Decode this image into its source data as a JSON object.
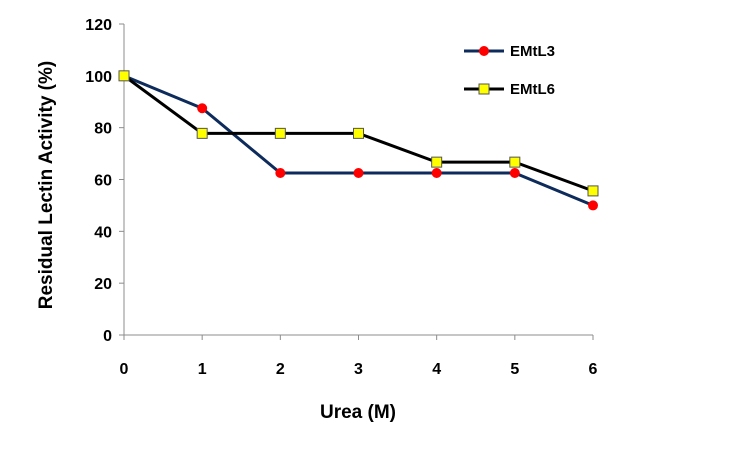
{
  "chart_data": {
    "type": "line",
    "xlabel": "Urea (M)",
    "ylabel": "Residual Lectin Activity (%)",
    "xlim": [
      0,
      6
    ],
    "ylim": [
      0,
      120
    ],
    "x_ticks": [
      0,
      1,
      2,
      3,
      4,
      5,
      6
    ],
    "y_ticks": [
      0,
      20,
      40,
      60,
      80,
      100,
      120
    ],
    "grid": false,
    "legend_position": "top-right",
    "series": [
      {
        "name": "EMtL3",
        "x": [
          0,
          1,
          2,
          3,
          4,
          5,
          6
        ],
        "values": [
          100,
          87.5,
          62.5,
          62.5,
          62.5,
          62.5,
          50
        ],
        "line_color": "#0d2b5b",
        "marker": "circle",
        "marker_color": "#ff0000"
      },
      {
        "name": "EMtL6",
        "x": [
          0,
          1,
          2,
          3,
          4,
          5,
          6
        ],
        "values": [
          100,
          77.8,
          77.8,
          77.8,
          66.7,
          66.7,
          55.6
        ],
        "line_color": "#000000",
        "marker": "square",
        "marker_color": "#ffff00"
      }
    ]
  }
}
